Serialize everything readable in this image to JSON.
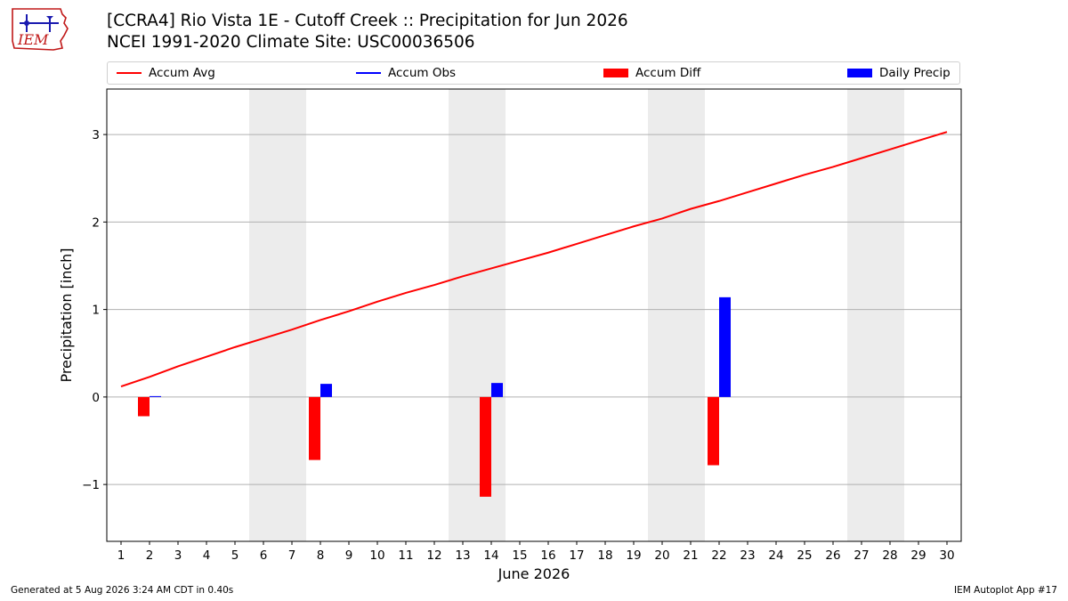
{
  "header": {
    "title_line1": "[CCRA4] Rio Vista 1E - Cutoff Creek :: Precipitation for Jun 2026",
    "title_line2": "NCEI 1991-2020 Climate Site: USC00036506"
  },
  "logo": {
    "text": "IEM",
    "icon": "iowa-state-outline-logo"
  },
  "legend": [
    {
      "label": "Accum Avg",
      "kind": "line",
      "color": "#ff0000"
    },
    {
      "label": "Accum Obs",
      "kind": "line",
      "color": "#0000ff"
    },
    {
      "label": "Accum Diff",
      "kind": "bar",
      "color": "#ff0000"
    },
    {
      "label": "Daily Precip",
      "kind": "bar",
      "color": "#0000ff"
    }
  ],
  "chart_data": {
    "type": "bar",
    "ylabel": "Precipitation [inch]",
    "xlabel": "June 2026",
    "ylim": [
      -1.65,
      3.52
    ],
    "yticks": [
      -1,
      0,
      1,
      2,
      3
    ],
    "ytick_labels": [
      "−1",
      "0",
      "1",
      "2",
      "3"
    ],
    "grid": "horizontal",
    "legend_placement": "top",
    "weekend_shading": [
      [
        6,
        7
      ],
      [
        13,
        14
      ],
      [
        20,
        21
      ],
      [
        27,
        28
      ]
    ],
    "days": [
      1,
      2,
      3,
      4,
      5,
      6,
      7,
      8,
      9,
      10,
      11,
      12,
      13,
      14,
      15,
      16,
      17,
      18,
      19,
      20,
      21,
      22,
      23,
      24,
      25,
      26,
      27,
      28,
      29,
      30
    ],
    "series": [
      {
        "name": "Accum Avg",
        "kind": "line",
        "color": "#ff0000",
        "values": [
          0.12,
          0.23,
          0.35,
          0.46,
          0.57,
          0.67,
          0.77,
          0.88,
          0.98,
          1.09,
          1.19,
          1.28,
          1.38,
          1.47,
          1.56,
          1.65,
          1.75,
          1.85,
          1.95,
          2.04,
          2.15,
          2.24,
          2.34,
          2.44,
          2.54,
          2.63,
          2.73,
          2.83,
          2.93,
          3.03
        ]
      },
      {
        "name": "Accum Diff",
        "kind": "bar",
        "color": "#ff0000",
        "points": [
          [
            2,
            -0.22
          ],
          [
            8,
            -0.72
          ],
          [
            14,
            -1.14
          ],
          [
            22,
            -0.78
          ]
        ]
      },
      {
        "name": "Daily Precip",
        "kind": "bar",
        "color": "#0000ff",
        "points": [
          [
            2,
            0.01
          ],
          [
            8,
            0.15
          ],
          [
            14,
            0.16
          ],
          [
            22,
            1.14
          ]
        ]
      }
    ]
  },
  "footer": {
    "left": "Generated at 5 Aug 2026 3:24 AM CDT in 0.40s",
    "right": "IEM Autoplot App #17"
  }
}
